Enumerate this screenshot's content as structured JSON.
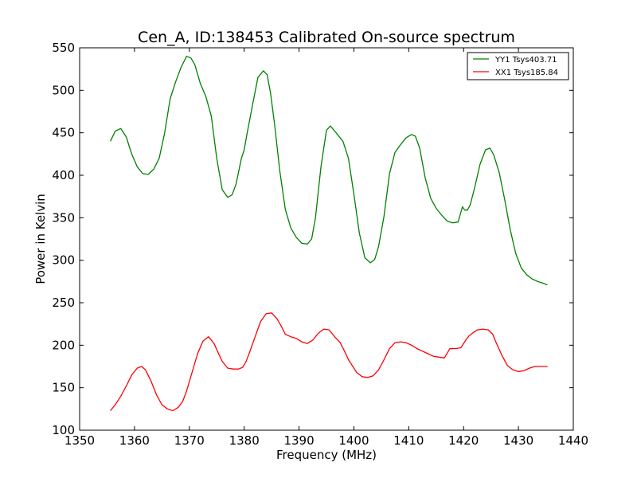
{
  "chart_data": {
    "type": "line",
    "title": "Cen_A, ID:138453 Calibrated On-source spectrum",
    "xlabel": "Frequency (MHz)",
    "ylabel": "Power in Kelvin",
    "xlim": [
      1350,
      1440
    ],
    "ylim": [
      100,
      550
    ],
    "xticks": [
      1350,
      1360,
      1370,
      1380,
      1390,
      1400,
      1410,
      1420,
      1430,
      1440
    ],
    "yticks": [
      100,
      150,
      200,
      250,
      300,
      350,
      400,
      450,
      500,
      550
    ],
    "grid": false,
    "legend_position": "top-right",
    "series": [
      {
        "name": "YY1 Tsys403.71",
        "color": "#008000",
        "x": [
          1355.6,
          1356.5,
          1357.5,
          1358.5,
          1359.5,
          1360.5,
          1361.5,
          1362.5,
          1363.5,
          1364.5,
          1365.5,
          1366.5,
          1367.5,
          1368.5,
          1369.5,
          1370.3,
          1371.0,
          1372.0,
          1373.0,
          1374.0,
          1375.0,
          1376.0,
          1377.0,
          1377.8,
          1378.5,
          1379.5,
          1380.0,
          1380.5,
          1381.5,
          1382.5,
          1383.5,
          1384.2,
          1384.8,
          1385.5,
          1386.5,
          1387.5,
          1388.5,
          1389.5,
          1390.5,
          1391.5,
          1392.3,
          1393.0,
          1394.0,
          1395.0,
          1395.7,
          1396.5,
          1397.0,
          1398.0,
          1399.0,
          1400.0,
          1401.0,
          1402.0,
          1403.0,
          1403.8,
          1404.5,
          1405.5,
          1406.5,
          1407.5,
          1408.5,
          1409.5,
          1410.5,
          1411.2,
          1412.0,
          1413.0,
          1414.0,
          1415.0,
          1416.0,
          1417.0,
          1418.0,
          1419.0,
          1419.8,
          1420.2,
          1420.7,
          1421.2,
          1422.0,
          1423.0,
          1424.0,
          1424.8,
          1425.5,
          1426.5,
          1427.5,
          1428.5,
          1429.5,
          1430.5,
          1431.5,
          1432.5,
          1433.5,
          1434.5,
          1435.3
        ],
        "y": [
          440,
          452,
          455,
          445,
          425,
          410,
          402,
          401,
          407,
          420,
          450,
          490,
          510,
          527,
          540,
          538,
          530,
          508,
          493,
          470,
          420,
          383,
          374,
          377,
          389,
          420,
          430,
          448,
          482,
          515,
          523,
          518,
          497,
          462,
          405,
          360,
          338,
          327,
          320,
          319,
          325,
          350,
          410,
          453,
          458,
          452,
          448,
          440,
          420,
          378,
          332,
          303,
          297,
          301,
          316,
          352,
          402,
          427,
          436,
          444,
          448,
          446,
          432,
          397,
          373,
          361,
          353,
          346,
          344,
          345,
          363,
          359,
          359,
          365,
          385,
          413,
          430,
          432,
          424,
          403,
          371,
          336,
          308,
          291,
          283,
          278,
          275,
          273,
          271
        ]
      },
      {
        "name": "XX1 Tsys185.84",
        "color": "#ff0000",
        "x": [
          1355.6,
          1356.5,
          1357.5,
          1358.5,
          1359.5,
          1360.5,
          1361.3,
          1362.0,
          1363.0,
          1364.0,
          1365.0,
          1366.0,
          1367.0,
          1368.0,
          1368.8,
          1369.5,
          1370.5,
          1371.5,
          1372.5,
          1373.5,
          1374.5,
          1375.2,
          1376.0,
          1377.0,
          1378.0,
          1379.0,
          1379.7,
          1380.3,
          1381.0,
          1382.0,
          1383.0,
          1384.0,
          1385.0,
          1386.0,
          1386.8,
          1387.5,
          1388.5,
          1389.5,
          1390.5,
          1391.5,
          1392.5,
          1393.5,
          1394.5,
          1395.5,
          1396.5,
          1397.5,
          1398.3,
          1399.0,
          1399.8,
          1400.5,
          1401.5,
          1402.5,
          1403.5,
          1404.5,
          1405.5,
          1406.5,
          1407.5,
          1408.5,
          1409.5,
          1410.5,
          1411.5,
          1412.5,
          1413.5,
          1414.5,
          1415.5,
          1416.5,
          1417.5,
          1418.5,
          1419.5,
          1420.0,
          1420.5,
          1421.0,
          1421.8,
          1422.5,
          1423.5,
          1424.5,
          1425.3,
          1426.0,
          1427.0,
          1428.0,
          1429.0,
          1430.0,
          1431.0,
          1432.0,
          1433.0,
          1434.0,
          1434.8,
          1435.3
        ],
        "y": [
          123,
          130,
          140,
          152,
          165,
          173,
          175,
          171,
          158,
          142,
          130,
          125,
          123,
          127,
          134,
          146,
          168,
          190,
          205,
          210,
          202,
          192,
          181,
          173,
          172,
          172,
          174,
          180,
          192,
          210,
          228,
          237,
          238,
          231,
          222,
          213,
          210,
          208,
          204,
          202,
          206,
          214,
          219,
          218,
          210,
          203,
          193,
          183,
          175,
          168,
          163,
          162,
          164,
          171,
          183,
          196,
          203,
          204,
          203,
          200,
          196,
          193,
          190,
          187,
          186,
          185,
          196,
          196,
          197,
          202,
          207,
          211,
          215,
          218,
          219,
          218,
          213,
          202,
          188,
          176,
          171,
          169,
          170,
          173,
          175,
          175,
          175,
          175
        ]
      }
    ]
  }
}
